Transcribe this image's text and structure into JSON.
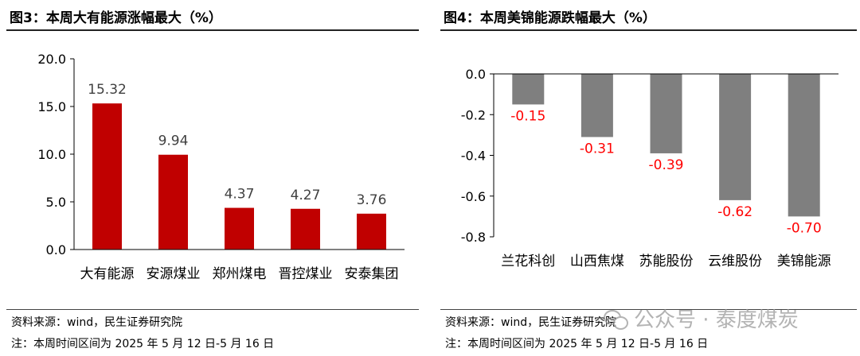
{
  "left_panel": {
    "title": "图3：本周大有能源涨幅最大（%）",
    "source": "资料来源：wind，民生证券研究院",
    "period": "注：本周时间区间为 2025 年 5 月 12 日-5 月 16 日"
  },
  "right_panel": {
    "title": "图4：本周美锦能源跌幅最大（%）",
    "source": "资料来源：wind，民生证券研究院",
    "period": "注：本周时间区间为 2025 年 5 月 12 日-5 月 16 日"
  },
  "watermark": {
    "text": "公众号 · 泰度煤炭",
    "icon": "wechat-icon"
  },
  "chart_data": [
    {
      "type": "bar",
      "categories": [
        "大有能源",
        "安源煤业",
        "郑州煤电",
        "晋控煤业",
        "安泰集团"
      ],
      "values": [
        15.32,
        9.94,
        4.37,
        4.27,
        3.76
      ],
      "labels": [
        "15.32",
        "9.94",
        "4.37",
        "4.27",
        "3.76"
      ],
      "ylim": [
        0,
        20
      ],
      "yticks": [
        "0.0",
        "5.0",
        "10.0",
        "15.0",
        "20.0"
      ],
      "yticks_values": [
        0,
        5,
        10,
        15,
        20
      ],
      "bar_color": "#C00000",
      "label_color": "#404040",
      "grid": false
    },
    {
      "type": "bar",
      "categories": [
        "兰花科创",
        "山西焦煤",
        "苏能股份",
        "云维股份",
        "美锦能源"
      ],
      "values": [
        -0.15,
        -0.31,
        -0.39,
        -0.62,
        -0.7
      ],
      "labels": [
        "-0.15",
        "-0.31",
        "-0.39",
        "-0.62",
        "-0.70"
      ],
      "ylim": [
        -0.8,
        0
      ],
      "yticks": [
        "0.0",
        "-0.2",
        "-0.4",
        "-0.6",
        "-0.8"
      ],
      "yticks_values": [
        0,
        -0.2,
        -0.4,
        -0.6,
        -0.8
      ],
      "bar_color": "#7F7F7F",
      "label_color": "#FF0000",
      "grid": false
    }
  ]
}
